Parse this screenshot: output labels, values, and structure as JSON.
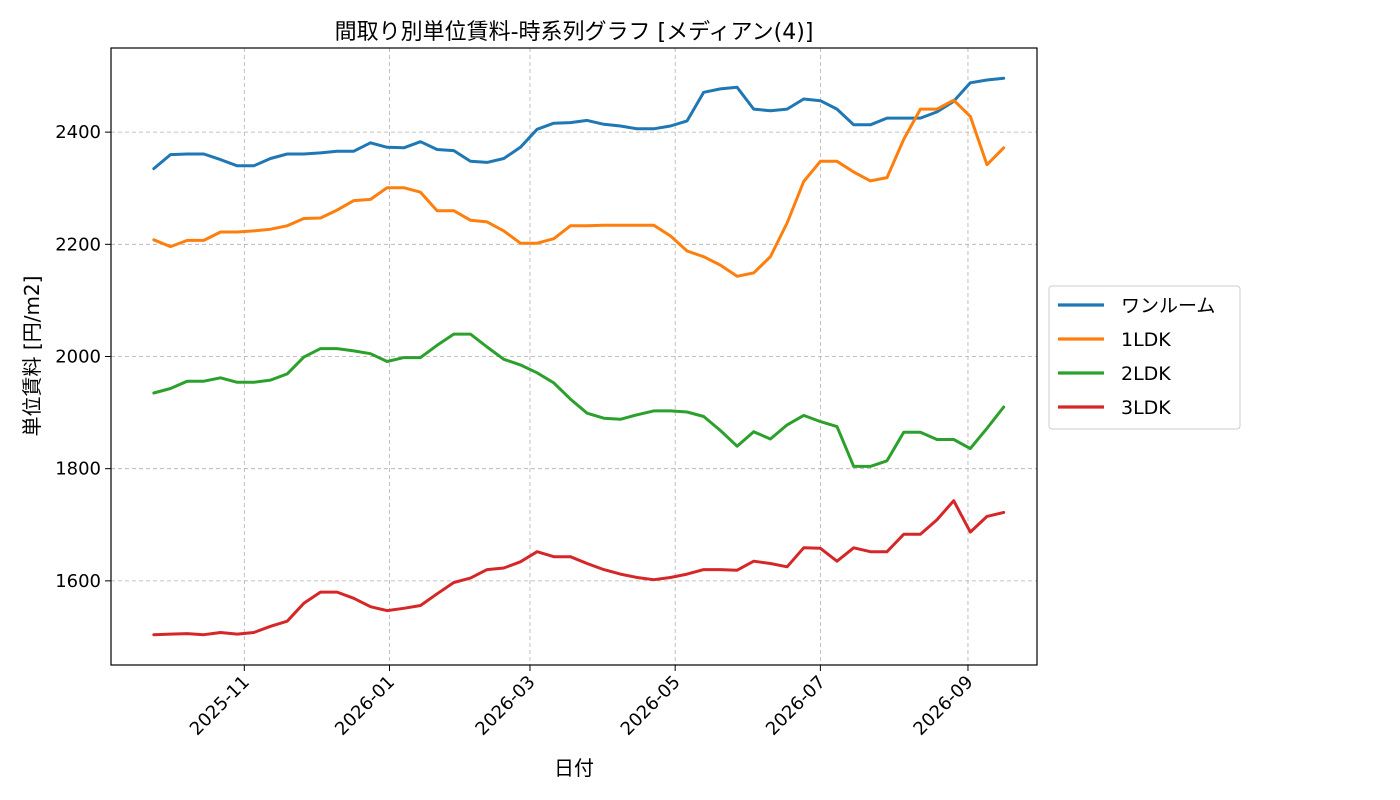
{
  "chart_data": {
    "type": "line",
    "title": "間取り別単位賃料-時系列グラフ [メディアン(4)]",
    "xlabel": "日付",
    "ylabel": "単位賃料 [円/m2]",
    "ylim": [
      1450,
      2550
    ],
    "yticks": [
      1600,
      1800,
      2000,
      2200,
      2400
    ],
    "xlim": [
      "2025-09-06",
      "2026-09-30"
    ],
    "xticks": [
      "2025-11",
      "2026-01",
      "2026-03",
      "2026-05",
      "2026-07",
      "2026-09"
    ],
    "grid": true,
    "legend_position": "right",
    "x": [
      "2025-09-24",
      "2025-10-01",
      "2025-10-08",
      "2025-10-15",
      "2025-10-22",
      "2025-10-29",
      "2025-11-05",
      "2025-11-12",
      "2025-11-19",
      "2025-11-26",
      "2025-12-03",
      "2025-12-10",
      "2025-12-17",
      "2025-12-24",
      "2025-12-31",
      "2026-01-07",
      "2026-01-14",
      "2026-01-21",
      "2026-01-28",
      "2026-02-04",
      "2026-02-11",
      "2026-02-18",
      "2026-02-25",
      "2026-03-04",
      "2026-03-11",
      "2026-03-18",
      "2026-03-25",
      "2026-04-01",
      "2026-04-08",
      "2026-04-15",
      "2026-04-22",
      "2026-04-29",
      "2026-05-06",
      "2026-05-13",
      "2026-05-20",
      "2026-05-27",
      "2026-06-03",
      "2026-06-10",
      "2026-06-17",
      "2026-06-24",
      "2026-07-01",
      "2026-07-08",
      "2026-07-15",
      "2026-07-22",
      "2026-07-29",
      "2026-08-05",
      "2026-08-12",
      "2026-08-19",
      "2026-08-26",
      "2026-09-02",
      "2026-09-09",
      "2026-09-16"
    ],
    "series": [
      {
        "name": "ワンルーム",
        "color": "#1f77b4",
        "values": [
          2335,
          2360,
          2361,
          2361,
          2351,
          2340,
          2340,
          2353,
          2361,
          2361,
          2363,
          2366,
          2366,
          2381,
          2373,
          2372,
          2383,
          2369,
          2367,
          2348,
          2346,
          2353,
          2373,
          2405,
          2416,
          2417,
          2421,
          2414,
          2411,
          2406,
          2406,
          2411,
          2420,
          2471,
          2477,
          2480,
          2441,
          2438,
          2441,
          2459,
          2456,
          2441,
          2413,
          2413,
          2425,
          2425,
          2425,
          2436,
          2455,
          2488,
          2493,
          2496
        ]
      },
      {
        "name": "1LDK",
        "color": "#ff7f0e",
        "values": [
          2208,
          2196,
          2207,
          2207,
          2222,
          2222,
          2224,
          2227,
          2233,
          2246,
          2247,
          2261,
          2278,
          2280,
          2301,
          2301,
          2293,
          2260,
          2260,
          2243,
          2240,
          2224,
          2202,
          2202,
          2210,
          2233,
          2233,
          2234,
          2234,
          2234,
          2234,
          2215,
          2188,
          2178,
          2163,
          2143,
          2149,
          2178,
          2238,
          2312,
          2348,
          2348,
          2329,
          2313,
          2319,
          2387,
          2441,
          2441,
          2457,
          2428,
          2342,
          2372
        ]
      },
      {
        "name": "2LDK",
        "color": "#2ca02c",
        "values": [
          1935,
          1943,
          1956,
          1956,
          1962,
          1954,
          1954,
          1958,
          1969,
          1999,
          2014,
          2014,
          2010,
          2005,
          1991,
          1998,
          1998,
          2020,
          2040,
          2040,
          2017,
          1995,
          1985,
          1971,
          1953,
          1924,
          1899,
          1890,
          1888,
          1896,
          1903,
          1903,
          1901,
          1893,
          1868,
          1840,
          1866,
          1853,
          1878,
          1895,
          1884,
          1875,
          1804,
          1804,
          1814,
          1865,
          1865,
          1852,
          1852,
          1836,
          1872,
          1910
        ]
      },
      {
        "name": "3LDK",
        "color": "#d62728",
        "values": [
          1504,
          1505,
          1506,
          1504,
          1508,
          1505,
          1508,
          1519,
          1528,
          1560,
          1580,
          1580,
          1569,
          1554,
          1547,
          1551,
          1556,
          1577,
          1597,
          1605,
          1620,
          1623,
          1634,
          1652,
          1643,
          1643,
          1631,
          1620,
          1612,
          1606,
          1602,
          1606,
          1612,
          1620,
          1620,
          1619,
          1635,
          1631,
          1625,
          1659,
          1658,
          1635,
          1659,
          1652,
          1652,
          1683,
          1683,
          1709,
          1743,
          1687,
          1715,
          1722
        ]
      }
    ]
  }
}
